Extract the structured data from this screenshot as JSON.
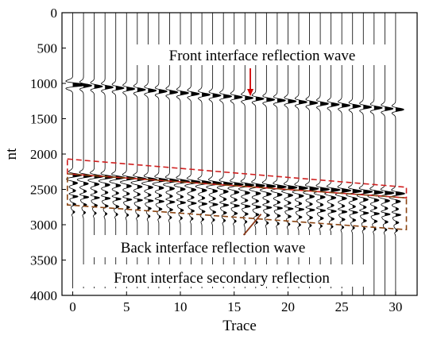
{
  "chart_data": {
    "type": "seismic-wiggle",
    "xlabel": "Trace",
    "ylabel": "nt",
    "xlim": [
      -1,
      32
    ],
    "ylim": [
      0,
      4000
    ],
    "y_reversed": true,
    "xticks": [
      0,
      5,
      10,
      15,
      20,
      25,
      30
    ],
    "yticks": [
      0,
      500,
      1000,
      1500,
      2000,
      2500,
      3000,
      3500,
      4000
    ],
    "grid": false,
    "trace_count": 31,
    "series": [
      {
        "name": "Front interface reflection wave",
        "arrival_nt_at_trace_0": 1020,
        "arrival_nt_at_trace_30": 1370
      },
      {
        "name": "Back interface reflection wave",
        "arrival_nt_at_trace_0": 2300,
        "arrival_nt_at_trace_30": 2560
      },
      {
        "name": "Front interface secondary reflection",
        "arrival_nt_at_trace_0": 2600,
        "arrival_nt_at_trace_30": 2860
      }
    ],
    "annotations": [
      {
        "text": "Front interface reflection wave",
        "color": "#000000",
        "arrow_color": "#d00000",
        "points_to": {
          "trace": 16.5,
          "nt": 1180
        }
      },
      {
        "text": "Back interface reflection wave",
        "color": "#000000",
        "arrow_color": "#8b3a1a",
        "points_to": {
          "trace": 17.5,
          "nt": 2850
        }
      },
      {
        "text": "Front interface secondary reflection",
        "color": "#000000"
      }
    ],
    "highlight_boxes": [
      {
        "label": "back-interface-region",
        "color": "#d02020",
        "style": "dashed",
        "trace_range": [
          -0.5,
          31
        ],
        "nt_top_left": 2070,
        "nt_top_right": 2470,
        "nt_bottom_left": 2280,
        "nt_bottom_right": 2620
      },
      {
        "label": "secondary-reflection-region",
        "color": "#8b4513",
        "style": "dashed",
        "trace_range": [
          -0.5,
          31
        ],
        "nt_top_left": 2280,
        "nt_top_right": 2620,
        "nt_bottom_left": 2720,
        "nt_bottom_right": 3070
      }
    ]
  }
}
